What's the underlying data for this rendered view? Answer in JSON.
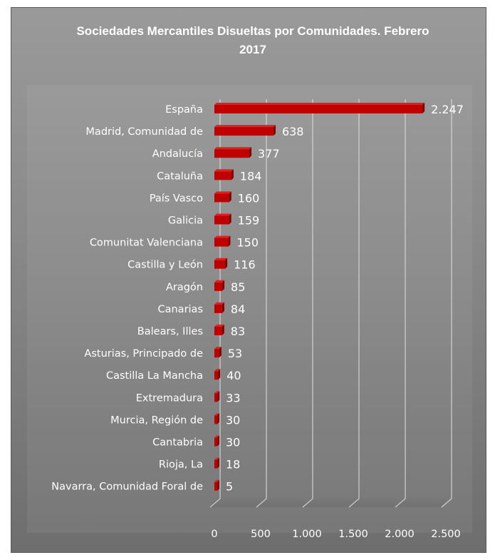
{
  "chart_data": {
    "type": "bar",
    "orientation": "horizontal",
    "title_lines": [
      "Sociedades Mercantiles Disueltas por Comunidades.  Febrero",
      "2017"
    ],
    "categories": [
      "España",
      "Madrid, Comunidad de",
      "Andalucía",
      "Cataluña",
      "País Vasco",
      "Galicia",
      "Comunitat Valenciana",
      "Castilla y León",
      "Aragón",
      "Canarias",
      "Balears, Illes",
      "Asturias, Principado de",
      "Castilla  La Mancha",
      "Extremadura",
      "Murcia, Región de",
      "Cantabria",
      "Rioja, La",
      "Navarra, Comunidad Foral de"
    ],
    "values": [
      2247,
      638,
      377,
      184,
      160,
      159,
      150,
      116,
      85,
      84,
      83,
      53,
      40,
      33,
      30,
      30,
      18,
      5
    ],
    "value_labels": [
      "2.247",
      "638",
      "377",
      "184",
      "160",
      "159",
      "150",
      "116",
      "85",
      "84",
      "83",
      "53",
      "40",
      "33",
      "30",
      "30",
      "18",
      "5"
    ],
    "xlim": [
      0,
      2500
    ],
    "xticks": [
      0,
      500,
      1000,
      1500,
      2000,
      2500
    ],
    "xtick_labels": [
      "0",
      "500",
      "1.000",
      "1.500",
      "2.000",
      "2.500"
    ],
    "grid": true,
    "legend": "none",
    "colors": {
      "bar_front": "#c00000",
      "bar_top": "#e02020",
      "bar_side": "#7a0000",
      "text": "#ffffff",
      "grid": "#d8d8d8"
    }
  }
}
